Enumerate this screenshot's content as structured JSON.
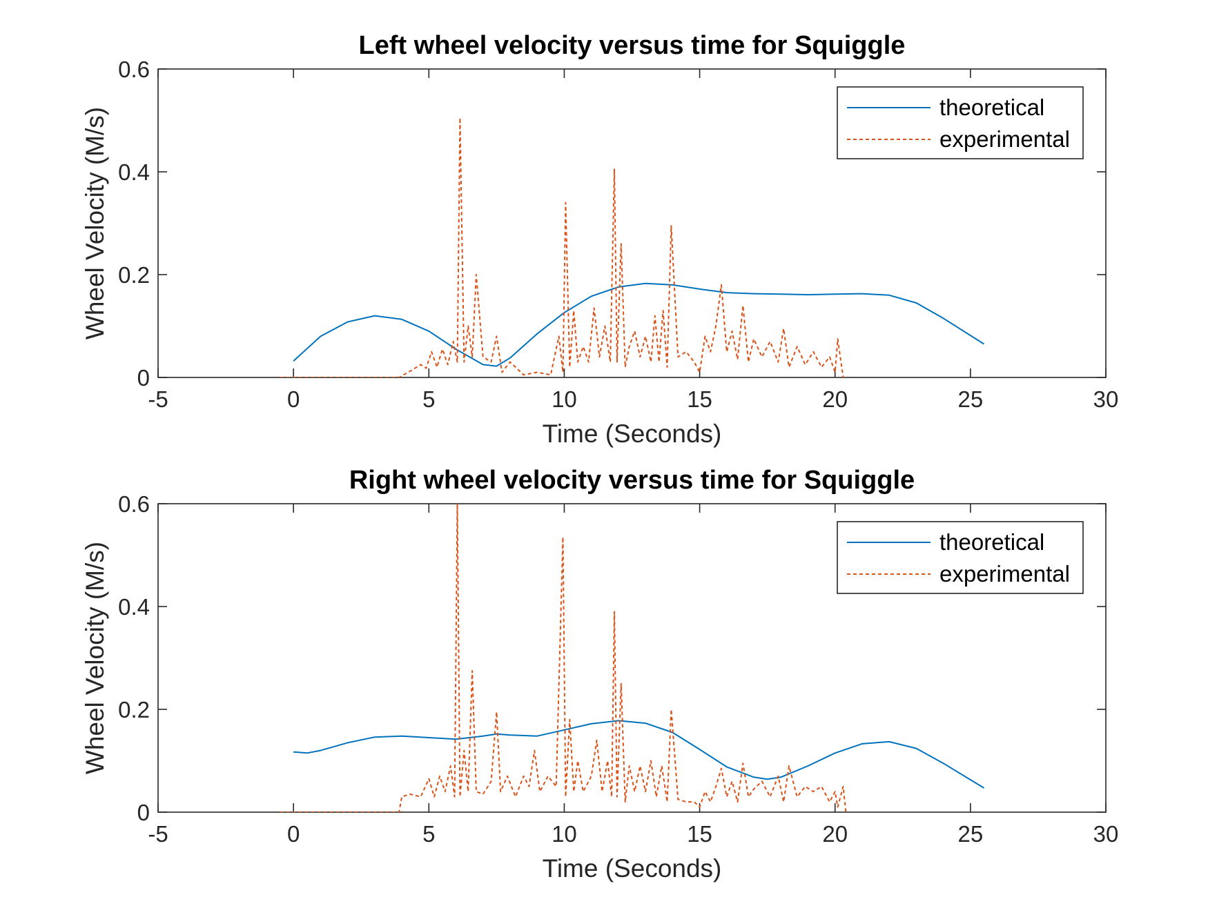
{
  "colors": {
    "theoretical": "#0072BD",
    "experimental": "#D95319",
    "axis": "#262626"
  },
  "chart_data": [
    {
      "type": "line",
      "title": "Left wheel velocity versus time for Squiggle",
      "xlabel": "Time (Seconds)",
      "ylabel": "Wheel Velocity (M/s)",
      "xlim": [
        -5,
        30
      ],
      "ylim": [
        0,
        0.6
      ],
      "xticks": [
        -5,
        0,
        5,
        10,
        15,
        20,
        25,
        30
      ],
      "yticks": [
        0,
        0.2,
        0.4,
        0.6
      ],
      "xtick_labels": [
        "-5",
        "0",
        "5",
        "10",
        "15",
        "20",
        "25",
        "30"
      ],
      "ytick_labels": [
        "0",
        "0.2",
        "0.4",
        "0.6"
      ],
      "legend_position": "top-right",
      "grid": false,
      "series": [
        {
          "name": "theoretical",
          "style": "solid",
          "x": [
            0,
            1,
            2,
            3,
            4,
            5,
            6,
            7,
            7.5,
            8,
            9,
            10,
            11,
            12,
            13,
            14,
            15,
            16,
            17,
            18,
            19,
            20,
            21,
            22,
            23,
            24,
            25.5
          ],
          "y": [
            0.032,
            0.08,
            0.108,
            0.12,
            0.113,
            0.09,
            0.055,
            0.025,
            0.022,
            0.038,
            0.085,
            0.126,
            0.158,
            0.176,
            0.183,
            0.18,
            0.172,
            0.165,
            0.163,
            0.162,
            0.161,
            0.162,
            0.163,
            0.16,
            0.145,
            0.115,
            0.065
          ]
        },
        {
          "name": "experimental",
          "style": "dashed",
          "x": [
            -0.5,
            1,
            2,
            3,
            3.9,
            4.3,
            4.7,
            4.9,
            5.1,
            5.3,
            5.5,
            5.7,
            5.9,
            6.05,
            6.15,
            6.3,
            6.45,
            6.6,
            6.75,
            7.0,
            7.3,
            7.5,
            7.7,
            8.0,
            8.5,
            9.0,
            9.5,
            9.8,
            9.95,
            10.05,
            10.2,
            10.35,
            10.5,
            10.7,
            10.9,
            11.1,
            11.3,
            11.5,
            11.7,
            11.85,
            11.95,
            12.1,
            12.25,
            12.4,
            12.6,
            12.8,
            13.0,
            13.2,
            13.35,
            13.5,
            13.65,
            13.8,
            13.95,
            14.2,
            14.5,
            14.8,
            15.0,
            15.2,
            15.4,
            15.6,
            15.8,
            16.0,
            16.2,
            16.4,
            16.6,
            16.8,
            17.0,
            17.3,
            17.6,
            17.9,
            18.1,
            18.3,
            18.6,
            18.9,
            19.2,
            19.5,
            19.8,
            20.0,
            20.1,
            20.3,
            20.4
          ],
          "y": [
            0,
            0,
            0,
            0,
            0,
            0.012,
            0.025,
            0.018,
            0.05,
            0.02,
            0.055,
            0.025,
            0.07,
            0.03,
            0.505,
            0.03,
            0.1,
            0.04,
            0.2,
            0.04,
            0.03,
            0.08,
            0.01,
            0.03,
            0.005,
            0.01,
            0.005,
            0.08,
            0.01,
            0.34,
            0.02,
            0.13,
            0.03,
            0.06,
            0.03,
            0.135,
            0.04,
            0.1,
            0.03,
            0.405,
            0.03,
            0.26,
            0.02,
            0.06,
            0.09,
            0.04,
            0.08,
            0.03,
            0.12,
            0.03,
            0.13,
            0.02,
            0.295,
            0.04,
            0.05,
            0.03,
            0.01,
            0.08,
            0.05,
            0.1,
            0.18,
            0.05,
            0.09,
            0.035,
            0.14,
            0.03,
            0.075,
            0.04,
            0.07,
            0.03,
            0.095,
            0.02,
            0.06,
            0.025,
            0.05,
            0.02,
            0.04,
            0.01,
            0.075,
            0.0,
            0.0
          ]
        }
      ]
    },
    {
      "type": "line",
      "title": "Right wheel velocity versus time for Squiggle",
      "xlabel": "Time (Seconds)",
      "ylabel": "Wheel Velocity (M/s)",
      "xlim": [
        -5,
        30
      ],
      "ylim": [
        0,
        0.6
      ],
      "xticks": [
        -5,
        0,
        5,
        10,
        15,
        20,
        25,
        30
      ],
      "yticks": [
        0,
        0.2,
        0.4,
        0.6
      ],
      "xtick_labels": [
        "-5",
        "0",
        "5",
        "10",
        "15",
        "20",
        "25",
        "30"
      ],
      "ytick_labels": [
        "0",
        "0.2",
        "0.4",
        "0.6"
      ],
      "legend_position": "top-right",
      "grid": false,
      "series": [
        {
          "name": "theoretical",
          "style": "solid",
          "x": [
            0,
            0.5,
            1,
            2,
            3,
            4,
            5,
            6,
            7,
            7.5,
            8,
            9,
            10,
            11,
            12,
            13,
            14,
            15,
            16,
            17,
            17.5,
            18,
            19,
            20,
            21,
            22,
            23,
            24,
            25.5
          ],
          "y": [
            0.117,
            0.115,
            0.12,
            0.135,
            0.146,
            0.148,
            0.145,
            0.142,
            0.148,
            0.152,
            0.15,
            0.148,
            0.16,
            0.172,
            0.178,
            0.173,
            0.155,
            0.122,
            0.088,
            0.068,
            0.064,
            0.068,
            0.09,
            0.115,
            0.133,
            0.137,
            0.124,
            0.095,
            0.047
          ]
        },
        {
          "name": "experimental",
          "style": "dashed",
          "x": [
            -0.5,
            1,
            2,
            3,
            3.9,
            4.0,
            4.3,
            4.7,
            5.0,
            5.2,
            5.4,
            5.6,
            5.8,
            5.95,
            6.05,
            6.15,
            6.3,
            6.45,
            6.6,
            6.75,
            7.0,
            7.3,
            7.5,
            7.65,
            7.9,
            8.2,
            8.5,
            8.7,
            8.9,
            9.1,
            9.4,
            9.7,
            9.95,
            10.05,
            10.2,
            10.35,
            10.5,
            10.7,
            11.0,
            11.2,
            11.4,
            11.6,
            11.75,
            11.85,
            11.95,
            12.1,
            12.25,
            12.4,
            12.6,
            12.8,
            13.0,
            13.2,
            13.4,
            13.6,
            13.8,
            13.95,
            14.2,
            14.5,
            14.8,
            15.0,
            15.2,
            15.4,
            15.6,
            15.8,
            16.0,
            16.2,
            16.4,
            16.6,
            16.8,
            17.0,
            17.3,
            17.6,
            17.9,
            18.1,
            18.3,
            18.6,
            18.9,
            19.2,
            19.5,
            19.8,
            20.0,
            20.1,
            20.3,
            20.4
          ],
          "y": [
            0,
            0,
            0,
            0,
            0,
            0.03,
            0.035,
            0.03,
            0.065,
            0.03,
            0.07,
            0.04,
            0.09,
            0.03,
            0.6,
            0.03,
            0.12,
            0.04,
            0.275,
            0.04,
            0.035,
            0.06,
            0.195,
            0.04,
            0.07,
            0.03,
            0.07,
            0.05,
            0.12,
            0.04,
            0.07,
            0.05,
            0.535,
            0.03,
            0.18,
            0.04,
            0.1,
            0.04,
            0.07,
            0.14,
            0.04,
            0.1,
            0.03,
            0.39,
            0.03,
            0.25,
            0.02,
            0.09,
            0.04,
            0.09,
            0.04,
            0.1,
            0.03,
            0.09,
            0.02,
            0.2,
            0.025,
            0.02,
            0.02,
            0.01,
            0.04,
            0.02,
            0.05,
            0.085,
            0.03,
            0.06,
            0.02,
            0.095,
            0.03,
            0.045,
            0.06,
            0.03,
            0.07,
            0.02,
            0.09,
            0.03,
            0.05,
            0.04,
            0.05,
            0.02,
            0.04,
            0.01,
            0.05,
            0.0
          ]
        }
      ]
    }
  ]
}
